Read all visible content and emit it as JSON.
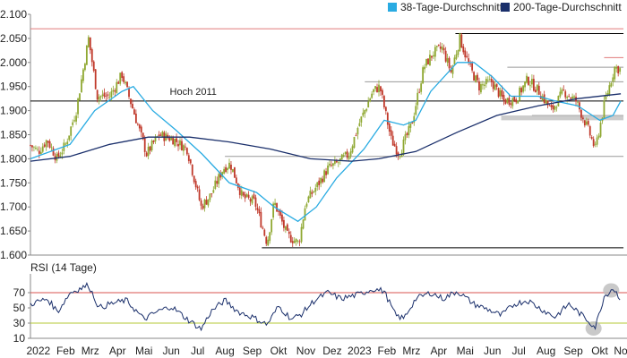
{
  "chart_data": [
    {
      "type": "candlestick",
      "ylim": [
        1600,
        2100
      ],
      "y_ticks": [
        {
          "value": 2100,
          "label": "2.100"
        },
        {
          "value": 2050,
          "label": "2.050"
        },
        {
          "value": 2000,
          "label": "2.000"
        },
        {
          "value": 1950,
          "label": "1.950"
        },
        {
          "value": 1900,
          "label": "1.900"
        },
        {
          "value": 1850,
          "label": "1.850"
        },
        {
          "value": 1800,
          "label": "1.800"
        },
        {
          "value": 1750,
          "label": "1.750"
        },
        {
          "value": 1700,
          "label": "1.700"
        },
        {
          "value": 1650,
          "label": "1.650"
        },
        {
          "value": 1600,
          "label": "1.600"
        }
      ],
      "legend": [
        {
          "label": "38-Tage-Durchschnitt",
          "color": "#29abe2"
        },
        {
          "label": "200-Tage-Durchschnitt",
          "color": "#1a2f6b"
        }
      ],
      "close_path": [
        [
          "2022-01-01",
          1828
        ],
        [
          "2022-01-10",
          1815
        ],
        [
          "2022-01-20",
          1840
        ],
        [
          "2022-01-31",
          1800
        ],
        [
          "2022-02-10",
          1830
        ],
        [
          "2022-02-22",
          1900
        ],
        [
          "2022-03-08",
          2050
        ],
        [
          "2022-03-18",
          1930
        ],
        [
          "2022-04-01",
          1930
        ],
        [
          "2022-04-15",
          1975
        ],
        [
          "2022-04-28",
          1900
        ],
        [
          "2022-05-13",
          1810
        ],
        [
          "2022-05-27",
          1850
        ],
        [
          "2022-06-13",
          1840
        ],
        [
          "2022-06-28",
          1820
        ],
        [
          "2022-07-14",
          1700
        ],
        [
          "2022-07-25",
          1725
        ],
        [
          "2022-08-08",
          1780
        ],
        [
          "2022-08-16",
          1790
        ],
        [
          "2022-08-30",
          1720
        ],
        [
          "2022-09-13",
          1710
        ],
        [
          "2022-09-27",
          1625
        ],
        [
          "2022-10-05",
          1710
        ],
        [
          "2022-10-20",
          1640
        ],
        [
          "2022-11-02",
          1625
        ],
        [
          "2022-11-10",
          1710
        ],
        [
          "2022-11-25",
          1750
        ],
        [
          "2022-12-05",
          1780
        ],
        [
          "2022-12-15",
          1790
        ],
        [
          "2022-12-29",
          1810
        ],
        [
          "2023-01-09",
          1870
        ],
        [
          "2023-01-25",
          1940
        ],
        [
          "2023-02-02",
          1950
        ],
        [
          "2023-02-15",
          1840
        ],
        [
          "2023-02-24",
          1810
        ],
        [
          "2023-03-10",
          1870
        ],
        [
          "2023-03-24",
          1990
        ],
        [
          "2023-04-04",
          2020
        ],
        [
          "2023-04-14",
          2030
        ],
        [
          "2023-04-24",
          1980
        ],
        [
          "2023-05-04",
          2050
        ],
        [
          "2023-05-15",
          1990
        ],
        [
          "2023-05-26",
          1950
        ],
        [
          "2023-06-09",
          1960
        ],
        [
          "2023-06-23",
          1920
        ],
        [
          "2023-07-07",
          1925
        ],
        [
          "2023-07-20",
          1965
        ],
        [
          "2023-08-02",
          1940
        ],
        [
          "2023-08-16",
          1900
        ],
        [
          "2023-08-30",
          1940
        ],
        [
          "2023-09-13",
          1920
        ],
        [
          "2023-09-27",
          1860
        ],
        [
          "2023-10-05",
          1820
        ],
        [
          "2023-10-16",
          1920
        ],
        [
          "2023-10-27",
          1990
        ],
        [
          "2023-11-03",
          1985
        ]
      ],
      "series": [
        {
          "name": "38-Tage-Durchschnitt",
          "points": [
            [
              "2022-01-01",
              1800
            ],
            [
              "2022-02-15",
              1830
            ],
            [
              "2022-03-15",
              1900
            ],
            [
              "2022-04-15",
              1940
            ],
            [
              "2022-04-28",
              1950
            ],
            [
              "2022-05-20",
              1900
            ],
            [
              "2022-06-15",
              1860
            ],
            [
              "2022-07-15",
              1810
            ],
            [
              "2022-08-15",
              1750
            ],
            [
              "2022-09-15",
              1730
            ],
            [
              "2022-10-05",
              1700
            ],
            [
              "2022-11-01",
              1670
            ],
            [
              "2022-11-22",
              1700
            ],
            [
              "2022-12-15",
              1760
            ],
            [
              "2023-01-15",
              1820
            ],
            [
              "2023-02-07",
              1880
            ],
            [
              "2023-03-01",
              1870
            ],
            [
              "2023-03-15",
              1880
            ],
            [
              "2023-04-01",
              1940
            ],
            [
              "2023-05-01",
              2000
            ],
            [
              "2023-05-20",
              2000
            ],
            [
              "2023-06-10",
              1970
            ],
            [
              "2023-07-01",
              1930
            ],
            [
              "2023-08-01",
              1930
            ],
            [
              "2023-08-20",
              1920
            ],
            [
              "2023-09-15",
              1910
            ],
            [
              "2023-10-10",
              1880
            ],
            [
              "2023-10-25",
              1890
            ],
            [
              "2023-11-03",
              1920
            ]
          ]
        },
        {
          "name": "200-Tage-Durchschnitt",
          "points": [
            [
              "2022-01-01",
              1795
            ],
            [
              "2022-02-15",
              1805
            ],
            [
              "2022-04-01",
              1830
            ],
            [
              "2022-05-15",
              1845
            ],
            [
              "2022-07-01",
              1845
            ],
            [
              "2022-08-15",
              1835
            ],
            [
              "2022-10-01",
              1820
            ],
            [
              "2022-11-15",
              1800
            ],
            [
              "2023-01-01",
              1795
            ],
            [
              "2023-02-01",
              1800
            ],
            [
              "2023-03-15",
              1815
            ],
            [
              "2023-05-01",
              1855
            ],
            [
              "2023-06-15",
              1890
            ],
            [
              "2023-08-01",
              1910
            ],
            [
              "2023-09-15",
              1925
            ],
            [
              "2023-11-03",
              1935
            ]
          ]
        }
      ],
      "horizontal_lines": [
        {
          "value": 2070,
          "from": "2022-01-01",
          "to": "2023-11-06",
          "color": "#e07b7b"
        },
        {
          "value": 1920,
          "from": "2022-01-01",
          "to": "2023-11-06",
          "color": "#000000"
        },
        {
          "value": 1615,
          "from": "2022-09-21",
          "to": "2023-11-06",
          "color": "#000000"
        },
        {
          "value": 2060,
          "from": "2023-04-29",
          "to": "2023-11-06",
          "color": "#000000"
        },
        {
          "value": 2010,
          "from": "2023-10-15",
          "to": "2023-11-06",
          "color": "#e07b7b"
        },
        {
          "value": 1990,
          "from": "2023-06-27",
          "to": "2023-11-06",
          "color": "#999999"
        },
        {
          "value": 1960,
          "from": "2023-01-16",
          "to": "2023-11-06",
          "color": "#999999"
        },
        {
          "value": 1805,
          "from": "2022-08-10",
          "to": "2023-11-06",
          "color": "#999999"
        },
        {
          "value": 1890,
          "from": "2023-07-25",
          "to": "2023-11-06",
          "color": "#aaaaaa"
        }
      ],
      "support_band": {
        "from": "2023-06-20",
        "to": "2023-11-06",
        "low": 1880,
        "high": 1890,
        "color": "#cccccc"
      },
      "annotations": [
        {
          "text": "Hoch 2011",
          "x": "2022-07-05",
          "y": 1925
        }
      ]
    },
    {
      "type": "line",
      "title": "RSI (14 Tage)",
      "ylim": [
        10,
        90
      ],
      "y_ticks": [
        {
          "value": 70,
          "label": "70"
        },
        {
          "value": 50,
          "label": "50"
        },
        {
          "value": 30,
          "label": "30"
        },
        {
          "value": 10,
          "label": "10"
        }
      ],
      "reference_lines": [
        {
          "value": 70,
          "color": "#d9534f"
        },
        {
          "value": 30,
          "color": "#b5c934"
        }
      ],
      "series": [
        {
          "name": "RSI",
          "points": [
            [
              "2022-01-01",
              55
            ],
            [
              "2022-01-20",
              62
            ],
            [
              "2022-02-01",
              45
            ],
            [
              "2022-02-15",
              70
            ],
            [
              "2022-03-08",
              80
            ],
            [
              "2022-03-20",
              50
            ],
            [
              "2022-04-01",
              55
            ],
            [
              "2022-04-20",
              60
            ],
            [
              "2022-05-10",
              35
            ],
            [
              "2022-05-25",
              45
            ],
            [
              "2022-06-10",
              52
            ],
            [
              "2022-06-25",
              38
            ],
            [
              "2022-07-14",
              22
            ],
            [
              "2022-07-25",
              45
            ],
            [
              "2022-08-10",
              60
            ],
            [
              "2022-08-25",
              45
            ],
            [
              "2022-09-10",
              38
            ],
            [
              "2022-09-27",
              28
            ],
            [
              "2022-10-10",
              52
            ],
            [
              "2022-10-25",
              35
            ],
            [
              "2022-11-05",
              42
            ],
            [
              "2022-11-20",
              60
            ],
            [
              "2022-12-05",
              70
            ],
            [
              "2022-12-20",
              62
            ],
            [
              "2023-01-10",
              68
            ],
            [
              "2023-01-25",
              75
            ],
            [
              "2023-02-07",
              72
            ],
            [
              "2023-02-20",
              40
            ],
            [
              "2023-03-01",
              36
            ],
            [
              "2023-03-15",
              62
            ],
            [
              "2023-04-01",
              70
            ],
            [
              "2023-04-15",
              62
            ],
            [
              "2023-05-01",
              72
            ],
            [
              "2023-05-20",
              55
            ],
            [
              "2023-06-05",
              48
            ],
            [
              "2023-06-20",
              40
            ],
            [
              "2023-07-05",
              55
            ],
            [
              "2023-07-20",
              60
            ],
            [
              "2023-08-05",
              48
            ],
            [
              "2023-08-20",
              38
            ],
            [
              "2023-09-05",
              55
            ],
            [
              "2023-09-20",
              40
            ],
            [
              "2023-10-05",
              25
            ],
            [
              "2023-10-15",
              65
            ],
            [
              "2023-10-25",
              76
            ],
            [
              "2023-11-03",
              62
            ]
          ]
        }
      ],
      "highlights": [
        {
          "x": "2023-10-03",
          "y": 23,
          "color": "#bbbbbb"
        },
        {
          "x": "2023-10-23",
          "y": 73,
          "color": "#bbbbbb"
        }
      ]
    }
  ],
  "x_axis": {
    "min": "2022-01-01",
    "max": "2023-11-10",
    "tick_labels": [
      {
        "label": "2022",
        "date": "2022-01-10"
      },
      {
        "label": "Feb",
        "date": "2022-02-10"
      },
      {
        "label": "Mrz",
        "date": "2022-03-10"
      },
      {
        "label": "Apr",
        "date": "2022-04-10"
      },
      {
        "label": "Mai",
        "date": "2022-05-10"
      },
      {
        "label": "Jun",
        "date": "2022-06-10"
      },
      {
        "label": "Jul",
        "date": "2022-07-10"
      },
      {
        "label": "Aug",
        "date": "2022-08-10"
      },
      {
        "label": "Sep",
        "date": "2022-09-10"
      },
      {
        "label": "Okt",
        "date": "2022-10-10"
      },
      {
        "label": "Nov",
        "date": "2022-11-10"
      },
      {
        "label": "Dez",
        "date": "2022-12-10"
      },
      {
        "label": "2023",
        "date": "2023-01-10"
      },
      {
        "label": "Feb",
        "date": "2023-02-10"
      },
      {
        "label": "Mrz",
        "date": "2023-03-10"
      },
      {
        "label": "Apr",
        "date": "2023-04-10"
      },
      {
        "label": "Mai",
        "date": "2023-05-10"
      },
      {
        "label": "Jun",
        "date": "2023-06-10"
      },
      {
        "label": "Jul",
        "date": "2023-07-10"
      },
      {
        "label": "Aug",
        "date": "2023-08-10"
      },
      {
        "label": "Sep",
        "date": "2023-09-10"
      },
      {
        "label": "Okt",
        "date": "2023-10-10"
      },
      {
        "label": "Nov",
        "date": "2023-11-06"
      }
    ]
  },
  "colors": {
    "candle_up": "#8fa832",
    "candle_down": "#c0392b",
    "rsi_line": "#1a2f6b"
  }
}
